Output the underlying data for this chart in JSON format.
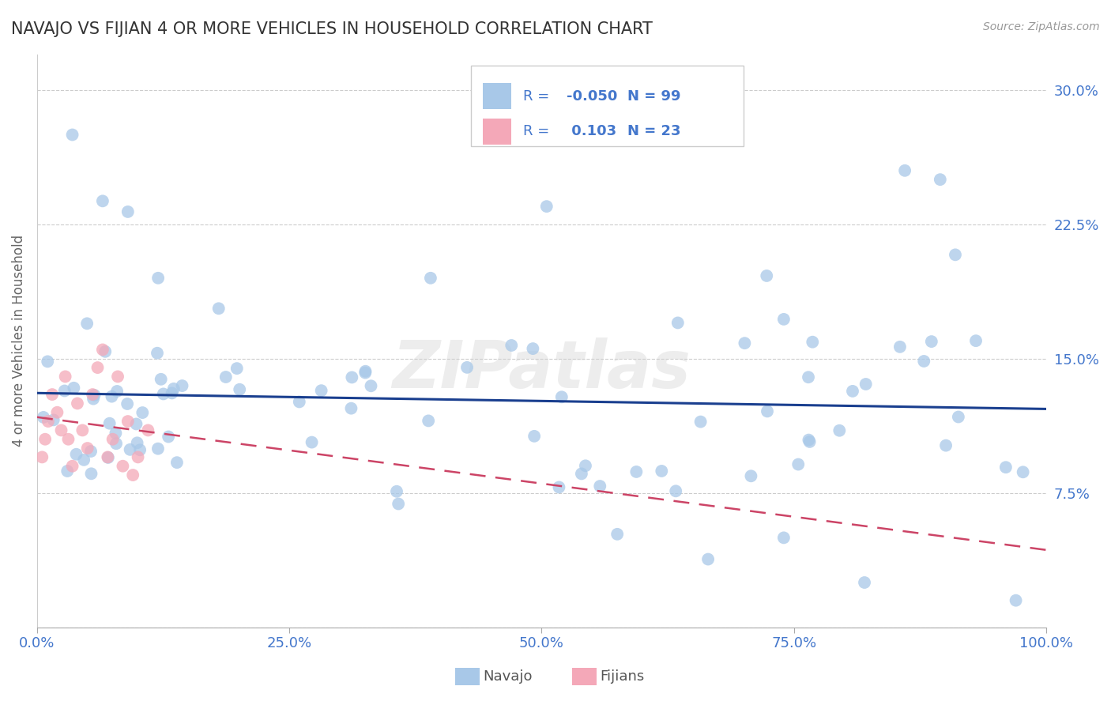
{
  "title": "NAVAJO VS FIJIAN 4 OR MORE VEHICLES IN HOUSEHOLD CORRELATION CHART",
  "source": "Source: ZipAtlas.com",
  "ylabel": "4 or more Vehicles in Household",
  "xlim": [
    0.0,
    100.0
  ],
  "ylim": [
    0.0,
    32.0
  ],
  "yticks": [
    0.0,
    7.5,
    15.0,
    22.5,
    30.0
  ],
  "xticks": [
    0.0,
    25.0,
    50.0,
    75.0,
    100.0
  ],
  "xtick_labels": [
    "0.0%",
    "25.0%",
    "50.0%",
    "75.0%",
    "100.0%"
  ],
  "ytick_labels": [
    "",
    "7.5%",
    "15.0%",
    "22.5%",
    "30.0%"
  ],
  "navajo_color": "#a8c8e8",
  "fijian_color": "#f4a8b8",
  "navajo_line_color": "#1a3f8f",
  "fijian_line_color": "#cc4466",
  "navajo_R": -0.05,
  "navajo_N": 99,
  "fijian_R": 0.103,
  "fijian_N": 23,
  "background_color": "#ffffff",
  "grid_color": "#cccccc",
  "title_color": "#333333",
  "axis_label_color": "#666666",
  "tick_color": "#4477cc",
  "legend_text_color": "#4477cc",
  "watermark": "ZIPatlas"
}
